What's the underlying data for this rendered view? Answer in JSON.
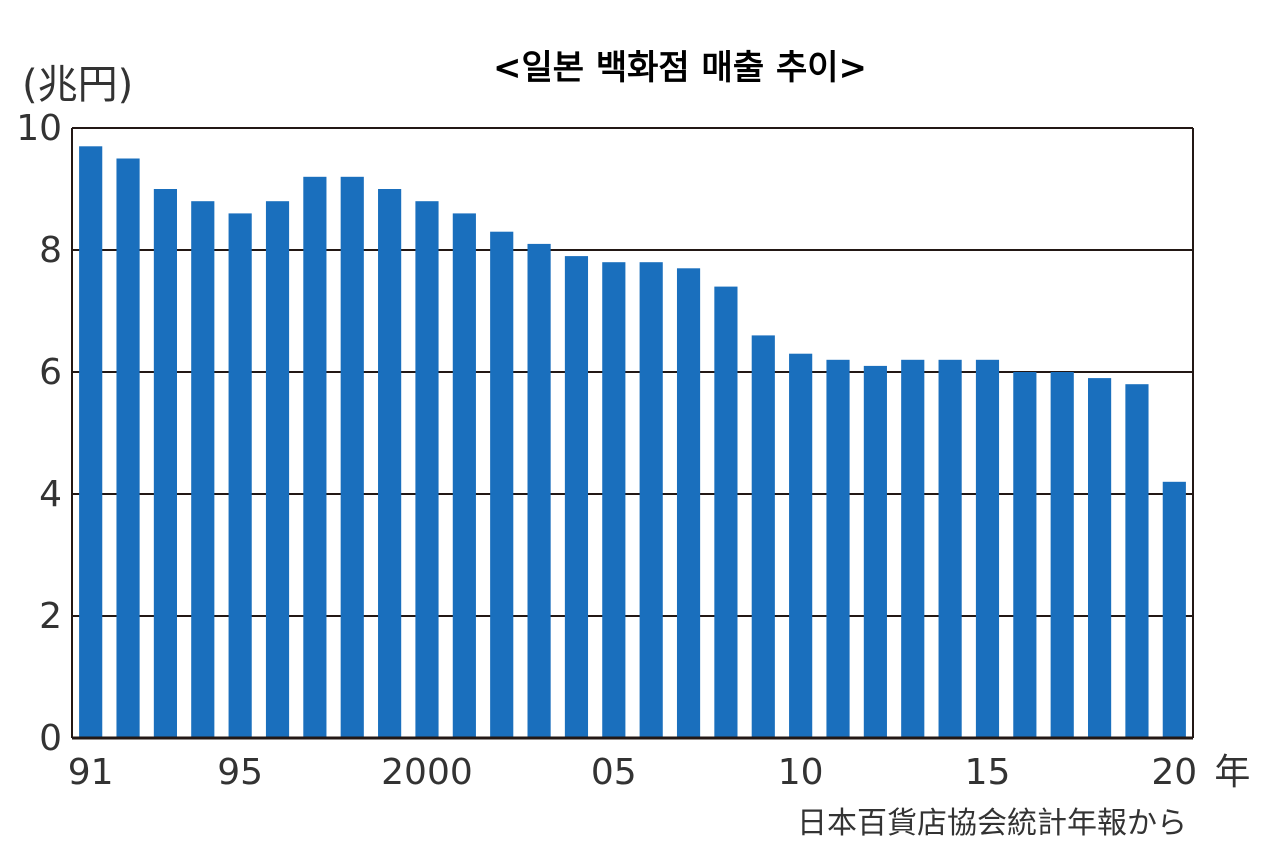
{
  "chart_data": {
    "type": "bar",
    "title": "<일본 백화점 매출 추이>",
    "ylabel": "(兆円)",
    "xlabel": "",
    "x_unit": "年",
    "source": "日本百貨店協会統計年報から",
    "ylim": [
      0,
      10
    ],
    "yticks": [
      0,
      2,
      4,
      6,
      8,
      10
    ],
    "grid": "horizontal",
    "bar_color": "#1a6fbd",
    "categories": [
      "1991",
      "1992",
      "1993",
      "1994",
      "1995",
      "1996",
      "1997",
      "1998",
      "1999",
      "2000",
      "2001",
      "2002",
      "2003",
      "2004",
      "2005",
      "2006",
      "2007",
      "2008",
      "2009",
      "2010",
      "2011",
      "2012",
      "2013",
      "2014",
      "2015",
      "2016",
      "2017",
      "2018",
      "2019",
      "2020"
    ],
    "tick_labels": [
      {
        "index": 0,
        "label": "91"
      },
      {
        "index": 4,
        "label": "95"
      },
      {
        "index": 9,
        "label": "2000"
      },
      {
        "index": 14,
        "label": "05"
      },
      {
        "index": 19,
        "label": "10"
      },
      {
        "index": 24,
        "label": "15"
      },
      {
        "index": 29,
        "label": "20"
      }
    ],
    "values": [
      9.7,
      9.5,
      9.0,
      8.8,
      8.6,
      8.8,
      9.2,
      9.2,
      9.0,
      8.8,
      8.6,
      8.3,
      8.1,
      7.9,
      7.8,
      7.8,
      7.7,
      7.4,
      6.6,
      6.3,
      6.2,
      6.1,
      6.2,
      6.2,
      6.2,
      6.0,
      6.0,
      5.9,
      5.8,
      4.2
    ]
  }
}
